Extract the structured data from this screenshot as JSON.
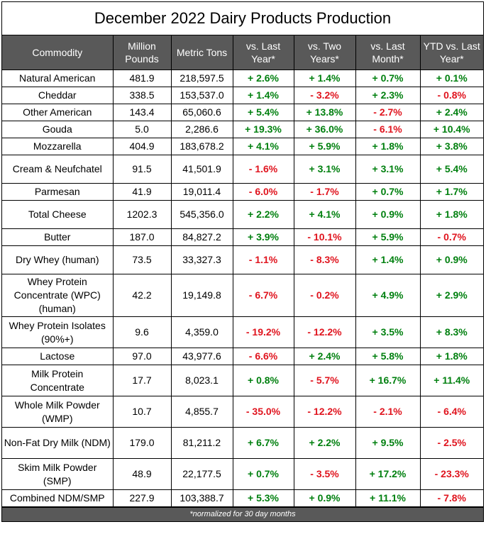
{
  "chart_data": {
    "type": "table",
    "title": "December 2022 Dairy Products Production",
    "columns": [
      "Commodity",
      "Million Pounds",
      "Metric Tons",
      "vs. Last Year*",
      "vs. Two Years*",
      "vs. Last Month*",
      "YTD vs. Last Year*"
    ],
    "rows": [
      [
        "Natural American",
        "481.9",
        "218,597.5",
        "+ 2.6%",
        "+ 1.4%",
        "+ 0.7%",
        "+ 0.1%"
      ],
      [
        "Cheddar",
        "338.5",
        "153,537.0",
        "+ 1.4%",
        "- 3.2%",
        "+ 2.3%",
        "- 0.8%"
      ],
      [
        "Other American",
        "143.4",
        "65,060.6",
        "+ 5.4%",
        "+ 13.8%",
        "- 2.7%",
        "+ 2.4%"
      ],
      [
        "Gouda",
        "5.0",
        "2,286.6",
        "+ 19.3%",
        "+ 36.0%",
        "- 6.1%",
        "+ 10.4%"
      ],
      [
        "Mozzarella",
        "404.9",
        "183,678.2",
        "+ 4.1%",
        "+ 5.9%",
        "+ 1.8%",
        "+ 3.8%"
      ],
      [
        "Cream & Neufchatel",
        "91.5",
        "41,501.9",
        "- 1.6%",
        "+ 3.1%",
        "+ 3.1%",
        "+ 5.4%"
      ],
      [
        "Parmesan",
        "41.9",
        "19,011.4",
        "- 6.0%",
        "- 1.7%",
        "+ 0.7%",
        "+ 1.7%"
      ],
      [
        "Total Cheese",
        "1202.3",
        "545,356.0",
        "+ 2.2%",
        "+ 4.1%",
        "+ 0.9%",
        "+ 1.8%"
      ],
      [
        "Butter",
        "187.0",
        "84,827.2",
        "+ 3.9%",
        "- 10.1%",
        "+ 5.9%",
        "- 0.7%"
      ],
      [
        "Dry Whey (human)",
        "73.5",
        "33,327.3",
        "- 1.1%",
        "- 8.3%",
        "+ 1.4%",
        "+ 0.9%"
      ],
      [
        "Whey Protein Concentrate (WPC) (human)",
        "42.2",
        "19,149.8",
        "- 6.7%",
        "- 0.2%",
        "+ 4.9%",
        "+ 2.9%"
      ],
      [
        "Whey Protein Isolates (90%+)",
        "9.6",
        "4,359.0",
        "- 19.2%",
        "- 12.2%",
        "+ 3.5%",
        "+ 8.3%"
      ],
      [
        "Lactose",
        "97.0",
        "43,977.6",
        "- 6.6%",
        "+ 2.4%",
        "+ 5.8%",
        "+ 1.8%"
      ],
      [
        "Milk Protein Concentrate",
        "17.7",
        "8,023.1",
        "+ 0.8%",
        "- 5.7%",
        "+ 16.7%",
        "+ 11.4%"
      ],
      [
        "Whole Milk Powder (WMP)",
        "10.7",
        "4,855.7",
        "- 35.0%",
        "- 12.2%",
        "- 2.1%",
        "- 6.4%"
      ],
      [
        "Non-Fat Dry Milk (NDM)",
        "179.0",
        "81,211.2",
        "+ 6.7%",
        "+ 2.2%",
        "+ 9.5%",
        "- 2.5%"
      ],
      [
        "Skim Milk Powder (SMP)",
        "48.9",
        "22,177.5",
        "+ 0.7%",
        "- 3.5%",
        "+ 17.2%",
        "- 23.3%"
      ],
      [
        "Combined NDM/SMP",
        "227.9",
        "103,388.7",
        "+ 5.3%",
        "+ 0.9%",
        "+ 11.1%",
        "- 7.8%"
      ]
    ],
    "footnote": "*normalized for 30 day months"
  },
  "colors": {
    "header_bg": "#595959",
    "header_text": "#ffffff",
    "positive": "#00800f",
    "negative": "#e0141e",
    "border": "#000000"
  }
}
